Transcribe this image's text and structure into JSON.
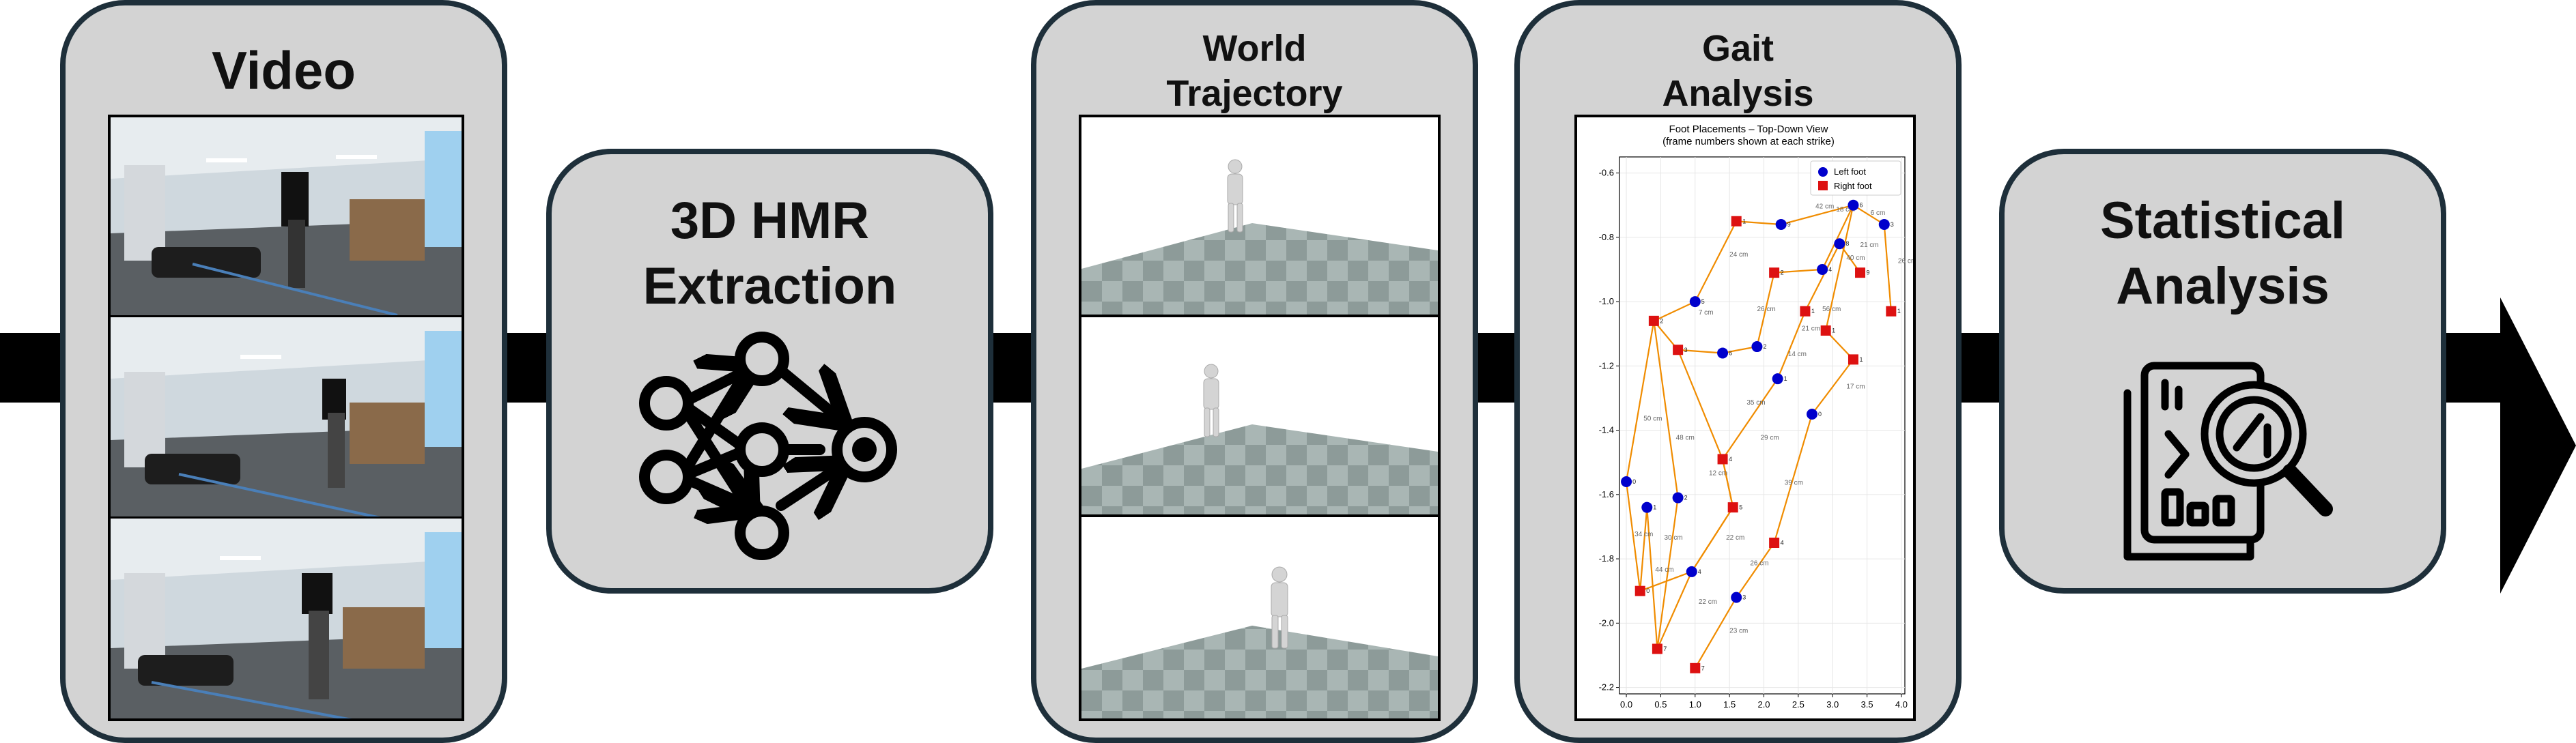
{
  "stages": {
    "video": {
      "title": "Video"
    },
    "hmr": {
      "title": "3D HMR Extraction"
    },
    "world": {
      "title": "World Trajectory"
    },
    "gait": {
      "title": "Gait Analysis"
    },
    "stats": {
      "title": "Statistical Analysis"
    }
  },
  "icons": {
    "hmr": "neural-network-icon",
    "stats": "magnifying-glass-chart-icon",
    "flow": "right-arrow"
  },
  "colors": {
    "stage_fill": "#d3d3d3",
    "stage_border": "#1e2f3a",
    "left_foot": "#0000cc",
    "right_foot": "#dd1111",
    "path": "#f08c00",
    "floor_dark": "#8d9b99",
    "floor_light": "#a9b6b4"
  },
  "chart_data": {
    "type": "scatter",
    "title": "Foot Placements – Top-Down View",
    "subtitle": "(frame numbers shown at each strike)",
    "xlabel": "",
    "ylabel": "",
    "xlim": [
      -0.1,
      4.05
    ],
    "ylim": [
      -2.22,
      -0.55
    ],
    "xticks": [
      "0.0",
      "0.5",
      "1.0",
      "1.5",
      "2.0",
      "2.5",
      "3.0",
      "3.5",
      "4.0"
    ],
    "yticks": [
      "-0.6",
      "-0.8",
      "-1.0",
      "-1.2",
      "-1.4",
      "-1.6",
      "-1.8",
      "-2.0",
      "-2.2"
    ],
    "grid": true,
    "legend": {
      "position": "top-right",
      "entries": [
        "Left foot",
        "Right foot"
      ]
    },
    "series": [
      {
        "name": "Left foot",
        "marker": "circle",
        "points": [
          [
            0.0,
            -1.56
          ],
          [
            0.3,
            -1.64
          ],
          [
            0.75,
            -1.61
          ],
          [
            1.6,
            -1.92
          ],
          [
            0.95,
            -1.84
          ],
          [
            1.0,
            -1.0
          ],
          [
            1.4,
            -1.16
          ],
          [
            2.7,
            -1.35
          ],
          [
            2.2,
            -1.24
          ],
          [
            1.9,
            -1.14
          ],
          [
            3.1,
            -0.82
          ],
          [
            2.25,
            -0.76
          ],
          [
            3.3,
            -0.7
          ],
          [
            3.75,
            -0.76
          ],
          [
            2.85,
            -0.9
          ]
        ]
      },
      {
        "name": "Right foot",
        "marker": "square",
        "points": [
          [
            0.2,
            -1.9
          ],
          [
            0.45,
            -2.08
          ],
          [
            1.0,
            -2.14
          ],
          [
            2.15,
            -1.75
          ],
          [
            1.55,
            -1.64
          ],
          [
            1.4,
            -1.49
          ],
          [
            0.4,
            -1.06
          ],
          [
            0.75,
            -1.15
          ],
          [
            1.6,
            -0.75
          ],
          [
            3.3,
            -1.18
          ],
          [
            2.9,
            -1.09
          ],
          [
            2.6,
            -1.03
          ],
          [
            2.15,
            -0.91
          ],
          [
            3.4,
            -0.91
          ],
          [
            3.85,
            -1.03
          ]
        ]
      }
    ],
    "paths": [
      [
        [
          0.0,
          -1.56
        ],
        [
          0.2,
          -1.9
        ],
        [
          0.3,
          -1.64
        ],
        [
          0.45,
          -2.08
        ],
        [
          0.75,
          -1.61
        ],
        [
          0.4,
          -1.06
        ],
        [
          1.0,
          -1.0
        ],
        [
          1.6,
          -0.75
        ],
        [
          2.25,
          -0.76
        ],
        [
          3.3,
          -0.7
        ]
      ],
      [
        [
          0.0,
          -1.56
        ],
        [
          0.4,
          -1.06
        ],
        [
          0.75,
          -1.15
        ],
        [
          1.4,
          -1.16
        ],
        [
          1.9,
          -1.14
        ],
        [
          2.15,
          -0.91
        ],
        [
          2.85,
          -0.9
        ],
        [
          3.3,
          -0.7
        ],
        [
          3.75,
          -0.76
        ],
        [
          3.85,
          -1.03
        ]
      ],
      [
        [
          0.2,
          -1.9
        ],
        [
          0.95,
          -1.84
        ],
        [
          1.55,
          -1.64
        ],
        [
          1.4,
          -1.49
        ],
        [
          2.2,
          -1.24
        ],
        [
          2.6,
          -1.03
        ],
        [
          3.1,
          -0.82
        ],
        [
          3.4,
          -0.91
        ]
      ],
      [
        [
          1.0,
          -2.14
        ],
        [
          1.6,
          -1.92
        ],
        [
          2.15,
          -1.75
        ],
        [
          2.7,
          -1.35
        ],
        [
          3.3,
          -1.18
        ],
        [
          2.9,
          -1.09
        ],
        [
          3.3,
          -0.7
        ]
      ],
      [
        [
          0.75,
          -1.15
        ],
        [
          1.4,
          -1.49
        ],
        [
          1.55,
          -1.64
        ],
        [
          0.95,
          -1.84
        ],
        [
          0.45,
          -2.08
        ]
      ]
    ],
    "frame_labels": [
      [
        "0",
        0.0,
        -1.56
      ],
      [
        "1",
        0.3,
        -1.64
      ],
      [
        "2",
        0.75,
        -1.61
      ],
      [
        "3",
        1.6,
        -1.92
      ],
      [
        "4",
        0.95,
        -1.84
      ],
      [
        "5",
        1.0,
        -1.0
      ],
      [
        "6",
        1.4,
        -1.16
      ],
      [
        "7",
        0.45,
        -2.08
      ],
      [
        "7",
        1.0,
        -2.14
      ],
      [
        "9",
        2.25,
        -0.76
      ],
      [
        "0",
        2.7,
        -1.35
      ],
      [
        "1",
        2.2,
        -1.24
      ],
      [
        "1",
        3.3,
        -1.18
      ],
      [
        "2",
        1.9,
        -1.14
      ],
      [
        "3",
        3.75,
        -0.76
      ],
      [
        "4",
        2.15,
        -1.75
      ],
      [
        "4",
        1.4,
        -1.49
      ],
      [
        "5",
        1.55,
        -1.64
      ],
      [
        "1",
        2.9,
        -1.09
      ],
      [
        "1",
        2.6,
        -1.03
      ],
      [
        "8",
        3.1,
        -0.82
      ],
      [
        "9",
        3.4,
        -0.91
      ],
      [
        "1",
        3.85,
        -1.03
      ],
      [
        "4",
        2.85,
        -0.9
      ],
      [
        "3",
        0.75,
        -1.15
      ],
      [
        "2",
        0.4,
        -1.06
      ],
      [
        "0",
        0.2,
        -1.9
      ],
      [
        "1",
        1.6,
        -0.75
      ],
      [
        "6",
        3.3,
        -0.7
      ],
      [
        "2",
        2.15,
        -0.91
      ]
    ],
    "distance_labels": [
      [
        "50 cm",
        0.25,
        -1.37
      ],
      [
        "48 cm",
        0.72,
        -1.43
      ],
      [
        "34 cm",
        0.12,
        -1.73
      ],
      [
        "30 cm",
        0.55,
        -1.74
      ],
      [
        "44 cm",
        0.42,
        -1.84
      ],
      [
        "22 cm",
        1.05,
        -1.94
      ],
      [
        "23 cm",
        1.5,
        -2.03
      ],
      [
        "26 cm",
        1.8,
        -1.82
      ],
      [
        "22 cm",
        1.45,
        -1.74
      ],
      [
        "39 cm",
        2.3,
        -1.57
      ],
      [
        "29 cm",
        1.95,
        -1.43
      ],
      [
        "12 cm",
        1.2,
        -1.54
      ],
      [
        "35 cm",
        1.75,
        -1.32
      ],
      [
        "14 cm",
        2.35,
        -1.17
      ],
      [
        "17 cm",
        3.2,
        -1.27
      ],
      [
        "21 cm",
        2.55,
        -1.09
      ],
      [
        "26 cm",
        1.9,
        -1.03
      ],
      [
        "56 cm",
        2.85,
        -1.03
      ],
      [
        "24 cm",
        1.5,
        -0.86
      ],
      [
        "42 cm",
        2.75,
        -0.71
      ],
      [
        "21 cm",
        3.4,
        -0.83
      ],
      [
        "26 cm",
        3.95,
        -0.88
      ],
      [
        "40 cm",
        3.2,
        -0.87
      ],
      [
        "18 cm",
        3.05,
        -0.72
      ],
      [
        "6 cm",
        3.55,
        -0.73
      ],
      [
        "7 cm",
        1.05,
        -1.04
      ]
    ]
  }
}
